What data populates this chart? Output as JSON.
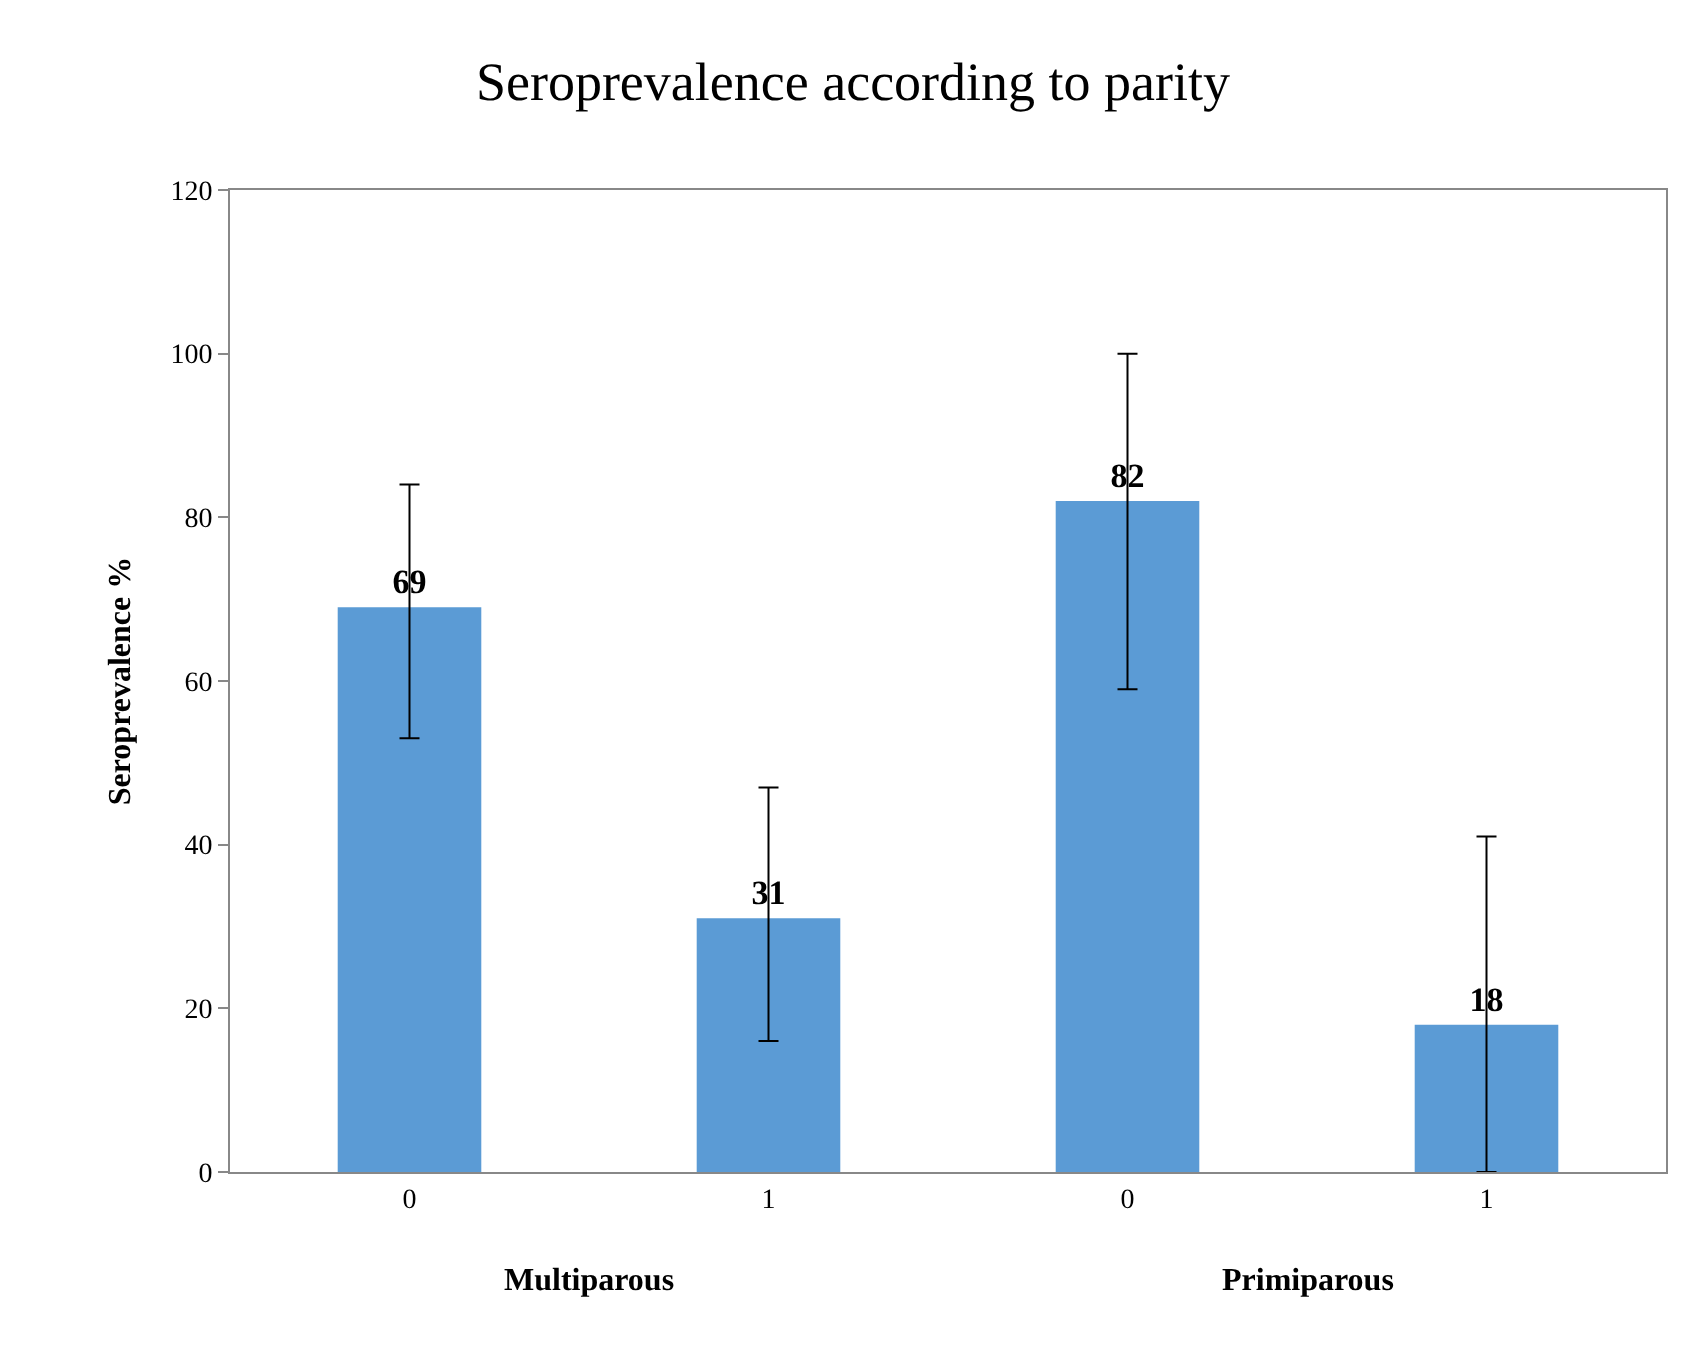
{
  "chart_data": {
    "type": "bar",
    "title": "Seroprevalence according to parity",
    "ylabel": "Seroprevalence %",
    "categories": [
      "0",
      "1",
      "0",
      "1"
    ],
    "values": [
      69,
      31,
      82,
      18
    ],
    "errors": [
      [
        53,
        84
      ],
      [
        16,
        47
      ],
      [
        59,
        100
      ],
      [
        0,
        41
      ]
    ],
    "color": "#5b9bd5",
    "ylim": [
      0,
      120
    ],
    "yticks": [
      0,
      20,
      40,
      60,
      80,
      100,
      120
    ],
    "data_labels": true,
    "annotations": [
      "Multiparous",
      "Primiparous"
    ]
  }
}
